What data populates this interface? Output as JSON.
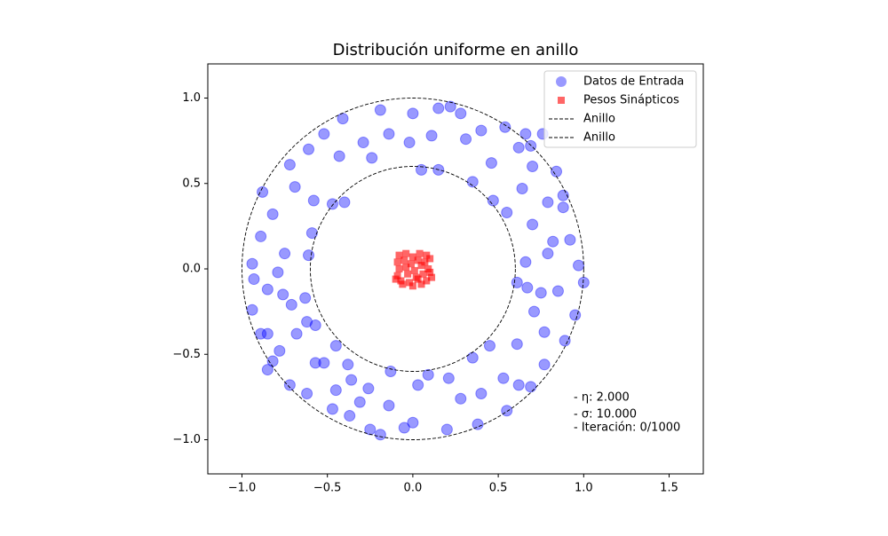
{
  "chart_data": {
    "type": "scatter",
    "title": "Distribución uniforme en anillo",
    "xlim": [
      -1.2,
      1.7
    ],
    "ylim": [
      -1.2,
      1.2
    ],
    "xticks": [
      {
        "value": -1.0,
        "label": "−1.0"
      },
      {
        "value": -0.5,
        "label": "−0.5"
      },
      {
        "value": 0.0,
        "label": "0.0"
      },
      {
        "value": 0.5,
        "label": "0.5"
      },
      {
        "value": 1.0,
        "label": "1.0"
      },
      {
        "value": 1.5,
        "label": "1.5"
      }
    ],
    "yticks": [
      {
        "value": -1.0,
        "label": "−1.0"
      },
      {
        "value": -0.5,
        "label": "−0.5"
      },
      {
        "value": 0.0,
        "label": "0.0"
      },
      {
        "value": 0.5,
        "label": "0.5"
      },
      {
        "value": 1.0,
        "label": "1.0"
      }
    ],
    "grid": false,
    "legend": "upper right",
    "series": [
      {
        "name": "Datos de Entrada",
        "color": "blue",
        "marker": "circle",
        "x": [
          -0.41,
          -0.19,
          0,
          0.15,
          0.22,
          0.28,
          0.4,
          0.54,
          0.62,
          0.69,
          0.76,
          0.7,
          0.84,
          0.88,
          0.88,
          0.92,
          0.97,
          1.0,
          0.95,
          0.89,
          0.77,
          0.69,
          0.55,
          0.38,
          0.2,
          0,
          -0.05,
          -0.19,
          -0.25,
          -0.37,
          -0.47,
          -0.62,
          -0.72,
          -0.82,
          -0.89,
          -0.94,
          -0.93,
          -0.94,
          -0.89,
          -0.88,
          -0.72,
          -0.61,
          -0.52,
          -0.58,
          -0.47,
          -0.4,
          -0.24,
          -0.02,
          0.05,
          0.15,
          0.35,
          0.47,
          0.55,
          0.7,
          0.66,
          0.61,
          0.67,
          0.75,
          0.71,
          0.61,
          0.45,
          0.35,
          0.21,
          0.09,
          -0.13,
          -0.36,
          -0.45,
          -0.57,
          -0.62,
          -0.63,
          -0.61,
          -0.59,
          -0.75,
          -0.76,
          -0.71,
          -0.78,
          -0.68,
          -0.57,
          -0.52,
          -0.45,
          -0.26,
          -0.31,
          -0.14,
          0.03,
          0.28,
          0.4,
          0.53,
          0.62,
          0.77,
          0.85,
          0.79,
          0.82,
          0.79,
          0.64,
          0.66,
          0.46,
          0.31,
          0.11,
          -0.14,
          -0.29,
          -0.43,
          -0.69,
          -0.82,
          -0.79,
          -0.85,
          -0.85,
          -0.38,
          -0.85
        ],
        "y": [
          0.88,
          0.93,
          0.91,
          0.94,
          0.95,
          0.91,
          0.81,
          0.83,
          0.71,
          0.72,
          0.79,
          0.6,
          0.57,
          0.43,
          0.36,
          0.17,
          0.02,
          -0.08,
          -0.27,
          -0.42,
          -0.56,
          -0.69,
          -0.83,
          -0.91,
          -0.94,
          -0.9,
          -0.93,
          -0.97,
          -0.94,
          -0.86,
          -0.82,
          -0.73,
          -0.68,
          -0.54,
          -0.38,
          -0.24,
          -0.06,
          0.03,
          0.19,
          0.45,
          0.61,
          0.7,
          0.79,
          0.4,
          0.38,
          0.39,
          0.65,
          0.74,
          0.58,
          0.58,
          0.51,
          0.4,
          0.33,
          0.26,
          0.04,
          -0.08,
          -0.11,
          -0.14,
          -0.25,
          -0.44,
          -0.45,
          -0.52,
          -0.64,
          -0.62,
          -0.6,
          -0.65,
          -0.45,
          -0.55,
          -0.31,
          -0.17,
          0.08,
          0.21,
          0.09,
          -0.15,
          -0.21,
          -0.48,
          -0.38,
          -0.33,
          -0.55,
          -0.71,
          -0.7,
          -0.78,
          -0.8,
          -0.68,
          -0.76,
          -0.73,
          -0.64,
          -0.68,
          -0.37,
          -0.13,
          0.09,
          0.16,
          0.39,
          0.47,
          0.79,
          0.62,
          0.76,
          0.78,
          0.79,
          0.74,
          0.66,
          0.48,
          0.32,
          -0.02,
          -0.38,
          -0.59,
          -0.56,
          -0.12
        ]
      },
      {
        "name": "Pesos Sinápticos",
        "color": "red",
        "marker": "square",
        "x": [
          -0.08,
          -0.04,
          0.0,
          0.04,
          0.08,
          -0.09,
          -0.05,
          -0.01,
          0.03,
          0.07,
          0.1,
          -0.08,
          -0.04,
          0.01,
          0.05,
          0.09,
          -0.09,
          -0.03,
          0.02,
          0.06,
          0.1,
          -0.07,
          -0.02,
          0.03,
          0.08,
          -0.06,
          0.0,
          0.05,
          0.11,
          -0.1
        ],
        "y": [
          0.08,
          0.09,
          0.07,
          0.09,
          0.08,
          0.04,
          0.05,
          0.03,
          0.05,
          0.04,
          0.06,
          0.0,
          0.01,
          -0.01,
          0.02,
          0.0,
          -0.04,
          -0.03,
          -0.05,
          -0.03,
          -0.02,
          -0.07,
          -0.08,
          -0.06,
          -0.07,
          -0.09,
          -0.1,
          -0.09,
          -0.05,
          -0.06
        ]
      },
      {
        "name": "Anillo",
        "color": "black",
        "marker": "ring",
        "radius": 0.6
      },
      {
        "name": "Anillo",
        "color": "black",
        "marker": "ring",
        "radius": 1.0
      }
    ],
    "annotations": [
      "- η: 2.000",
      "- σ: 10.000",
      "- Iteración: 0/1000"
    ]
  }
}
